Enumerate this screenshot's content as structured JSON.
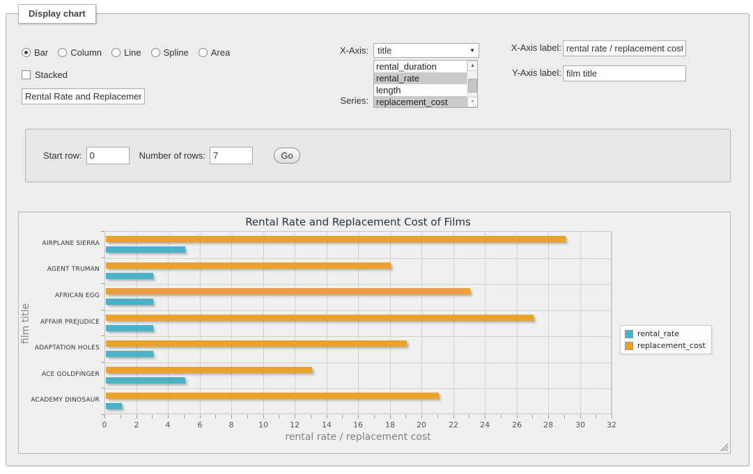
{
  "panel": {
    "legend": "Display chart"
  },
  "chart_type_options": [
    {
      "label": "Bar",
      "selected": true
    },
    {
      "label": "Column",
      "selected": false
    },
    {
      "label": "Line",
      "selected": false
    },
    {
      "label": "Spline",
      "selected": false
    },
    {
      "label": "Area",
      "selected": false
    }
  ],
  "stacked": {
    "label": "Stacked",
    "checked": false
  },
  "title_input": {
    "value": "Rental Rate and Replacement Cost of Films"
  },
  "x_axis": {
    "label": "X-Axis:",
    "value": "title"
  },
  "series_select": {
    "label": "Series:",
    "options": [
      {
        "label": "rental_duration",
        "selected": false
      },
      {
        "label": "rental_rate",
        "selected": true
      },
      {
        "label": "length",
        "selected": false
      },
      {
        "label": "replacement_cost",
        "selected": true
      }
    ]
  },
  "x_axis_label": {
    "label": "X-Axis label:",
    "value": "rental rate / replacement cost"
  },
  "y_axis_label": {
    "label": "Y-Axis label:",
    "value": "film title"
  },
  "rows": {
    "start_label": "Start row:",
    "start_value": "0",
    "count_label": "Number of rows:",
    "count_value": "7",
    "go_label": "Go"
  },
  "icons": {
    "dropdown_arrow": "▼",
    "scroll_up": "▲",
    "scroll_down": "▼"
  },
  "chart_data": {
    "type": "bar",
    "orientation": "horizontal",
    "title": "Rental Rate and Replacement Cost of Films",
    "categories": [
      "AIRPLANE SIERRA",
      "AGENT TRUMAN",
      "AFRICAN EGG",
      "AFFAIR PREJUDICE",
      "ADAPTATION HOLES",
      "ACE GOLDFINGER",
      "ACADEMY DINOSAUR"
    ],
    "series": [
      {
        "name": "rental_rate",
        "color": "#4bb2c5",
        "values": [
          4.99,
          2.99,
          2.99,
          2.99,
          2.99,
          4.99,
          0.99
        ]
      },
      {
        "name": "replacement_cost",
        "color": "#eaa228",
        "values": [
          28.99,
          17.99,
          22.99,
          26.99,
          18.99,
          12.99,
          20.99
        ]
      }
    ],
    "xlabel": "rental rate / replacement cost",
    "ylabel": "film title",
    "xlim": [
      0,
      32
    ],
    "x_tick_step": 2,
    "x_minor_tick_step": 1,
    "grid": true,
    "legend_position": "right"
  }
}
